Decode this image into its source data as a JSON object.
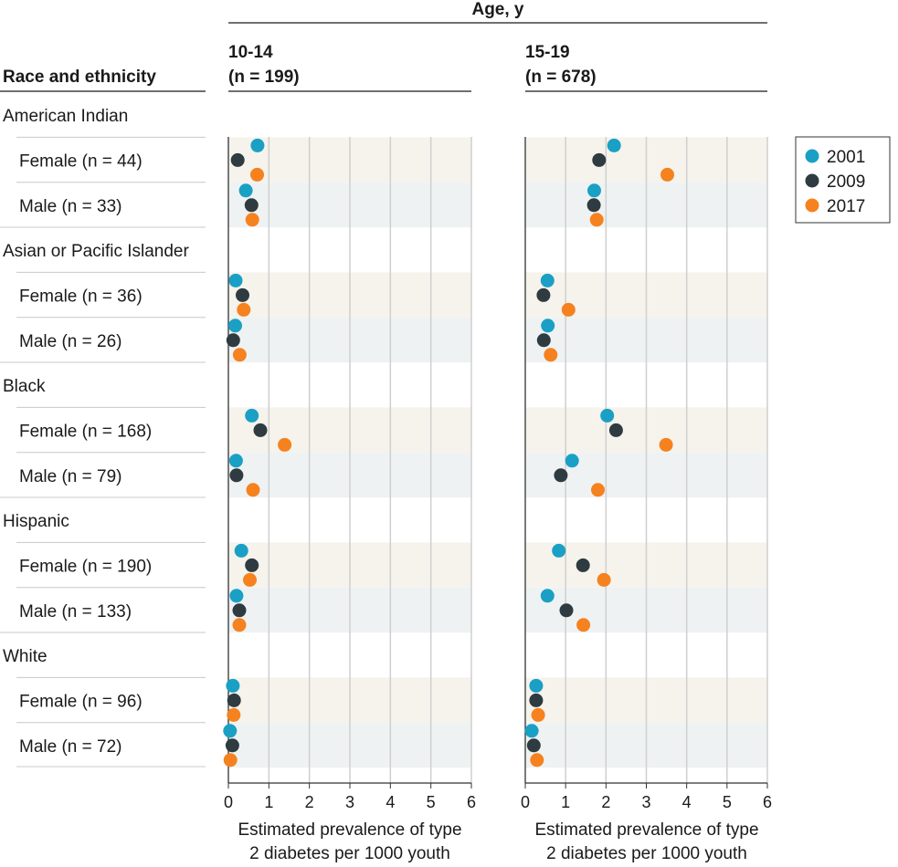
{
  "chart_data": {
    "type": "scatter",
    "header": "Age, y",
    "row_header": "Race and ethnicity",
    "xlim": [
      0,
      6
    ],
    "xticks": [
      "0",
      "1",
      "2",
      "3",
      "4",
      "5",
      "6"
    ],
    "xlabel_line1": "Estimated prevalence of type",
    "xlabel_line2": "2 diabetes per 1000 youth",
    "colors": {
      "2001": "#1aa0c4",
      "2009": "#2e3b40",
      "2017": "#f5821f"
    },
    "legend": [
      "2001",
      "2009",
      "2017"
    ],
    "panels": [
      {
        "title": "10-14",
        "n": "(n = 199)"
      },
      {
        "title": "15-19",
        "n": "(n = 678)"
      }
    ],
    "groups": [
      {
        "name": "American Indian",
        "rows": [
          {
            "label": "Female (n = 44)",
            "values": [
              [
                0.72,
                0.23,
                0.71
              ],
              [
                2.2,
                1.83,
                3.52
              ]
            ]
          },
          {
            "label": "Male (n = 33)",
            "values": [
              [
                0.43,
                0.57,
                0.59
              ],
              [
                1.71,
                1.7,
                1.77
              ]
            ]
          }
        ]
      },
      {
        "name": "Asian or Pacific Islander",
        "rows": [
          {
            "label": "Female (n = 36)",
            "values": [
              [
                0.18,
                0.35,
                0.38
              ],
              [
                0.55,
                0.45,
                1.07
              ]
            ]
          },
          {
            "label": "Male (n = 26)",
            "values": [
              [
                0.17,
                0.12,
                0.28
              ],
              [
                0.56,
                0.46,
                0.63
              ]
            ]
          }
        ]
      },
      {
        "name": "Black",
        "rows": [
          {
            "label": "Female (n = 168)",
            "values": [
              [
                0.58,
                0.79,
                1.39
              ],
              [
                2.03,
                2.25,
                3.49
              ]
            ]
          },
          {
            "label": "Male (n = 79)",
            "values": [
              [
                0.19,
                0.2,
                0.61
              ],
              [
                1.16,
                0.88,
                1.8
              ]
            ]
          }
        ]
      },
      {
        "name": "Hispanic",
        "rows": [
          {
            "label": "Female (n = 190)",
            "values": [
              [
                0.32,
                0.58,
                0.53
              ],
              [
                0.83,
                1.43,
                1.95
              ]
            ]
          },
          {
            "label": "Male (n = 133)",
            "values": [
              [
                0.2,
                0.27,
                0.27
              ],
              [
                0.55,
                1.02,
                1.44
              ]
            ]
          }
        ]
      },
      {
        "name": "White",
        "rows": [
          {
            "label": "Female (n = 96)",
            "values": [
              [
                0.11,
                0.14,
                0.13
              ],
              [
                0.27,
                0.27,
                0.32
              ]
            ]
          },
          {
            "label": "Male (n = 72)",
            "values": [
              [
                0.04,
                0.1,
                0.05
              ],
              [
                0.16,
                0.21,
                0.29
              ]
            ]
          }
        ]
      }
    ]
  }
}
